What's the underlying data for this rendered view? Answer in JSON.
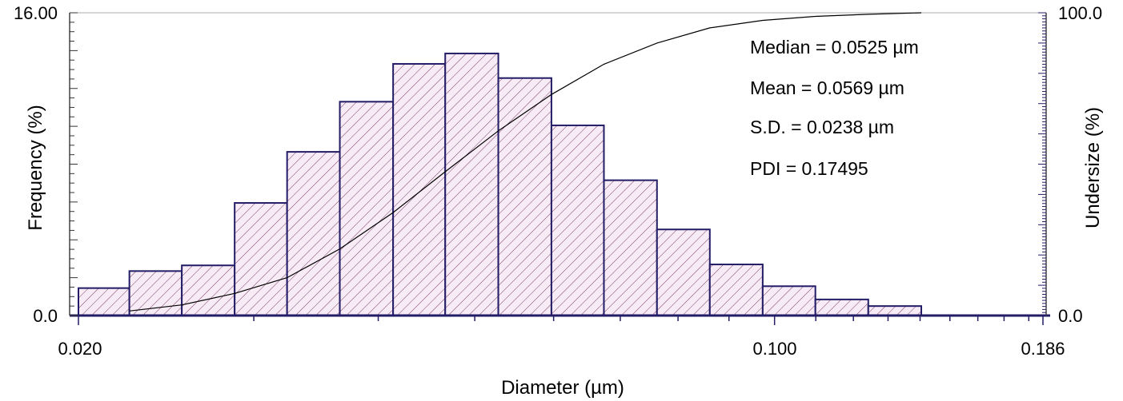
{
  "chart_data": {
    "type": "bar",
    "xlabel": "Diameter (µm)",
    "ylabel_left": "Frequency (%)",
    "ylabel_right": "Undersize (%)",
    "x_scale": "log",
    "xlim": [
      0.02,
      0.186
    ],
    "ylim_left": [
      0.0,
      16.0
    ],
    "ylim_right": [
      0.0,
      100.0
    ],
    "x_tick_labels": [
      "0.020",
      "0.100",
      "0.186"
    ],
    "y_left_tick_labels": [
      "0.0",
      "16.00"
    ],
    "y_right_tick_labels": [
      "0.0",
      "100.0"
    ],
    "bins": [
      {
        "x_start": 0.02,
        "x_end": 0.0225,
        "frequency": 1.45
      },
      {
        "x_start": 0.0225,
        "x_end": 0.0254,
        "frequency": 2.35
      },
      {
        "x_start": 0.0254,
        "x_end": 0.0287,
        "frequency": 2.65
      },
      {
        "x_start": 0.0287,
        "x_end": 0.0324,
        "frequency": 5.95
      },
      {
        "x_start": 0.0324,
        "x_end": 0.0366,
        "frequency": 8.65
      },
      {
        "x_start": 0.0366,
        "x_end": 0.0414,
        "frequency": 11.3
      },
      {
        "x_start": 0.0414,
        "x_end": 0.0467,
        "frequency": 13.3
      },
      {
        "x_start": 0.0467,
        "x_end": 0.0528,
        "frequency": 13.85
      },
      {
        "x_start": 0.0528,
        "x_end": 0.0597,
        "frequency": 12.55
      },
      {
        "x_start": 0.0597,
        "x_end": 0.0674,
        "frequency": 10.05
      },
      {
        "x_start": 0.0674,
        "x_end": 0.0762,
        "frequency": 7.15
      },
      {
        "x_start": 0.0762,
        "x_end": 0.0861,
        "frequency": 4.55
      },
      {
        "x_start": 0.0861,
        "x_end": 0.0973,
        "frequency": 2.7
      },
      {
        "x_start": 0.0973,
        "x_end": 0.1099,
        "frequency": 1.55
      },
      {
        "x_start": 0.1099,
        "x_end": 0.1242,
        "frequency": 0.85
      },
      {
        "x_start": 0.1242,
        "x_end": 0.1404,
        "frequency": 0.5
      }
    ],
    "undersize_curve": {
      "x": [
        0.0225,
        0.0254,
        0.0287,
        0.0324,
        0.0366,
        0.0414,
        0.0467,
        0.0528,
        0.0597,
        0.0674,
        0.0762,
        0.0861,
        0.0973,
        0.1099,
        0.1242,
        0.1404
      ],
      "y": [
        1.5,
        3.5,
        7.3,
        12.5,
        22,
        34,
        47.5,
        61,
        73,
        83,
        90,
        95,
        97.5,
        98.8,
        99.5,
        100
      ]
    },
    "annotations": [
      "Median = 0.0525 µm",
      "Mean = 0.0569 µm",
      "S.D. = 0.0238 µm",
      "PDI = 0.17495"
    ],
    "colors": {
      "bar_fill": "#f7ecf5",
      "hatch": "#7a3f6c",
      "bar_edge": "#231c66",
      "curve": "#000000",
      "axis": "#231c66"
    }
  }
}
